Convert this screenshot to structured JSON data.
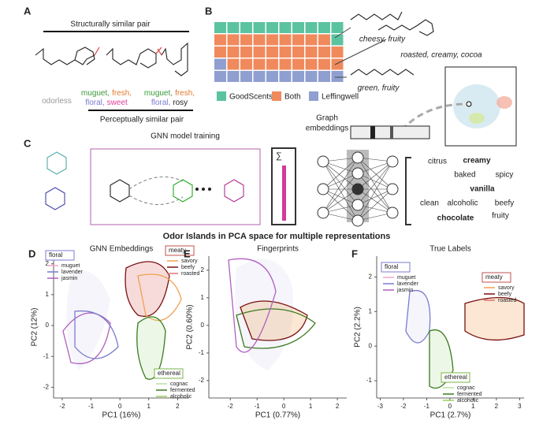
{
  "panel_a": {
    "label": "A",
    "top_caption": "Structurally similar pair",
    "bottom_caption": "Perceptually similar pair",
    "molecules": [
      {
        "lines": [
          [
            {
              "text": "odorless",
              "color": "#9a9a9a"
            }
          ]
        ]
      },
      {
        "lines": [
          [
            {
              "text": "muguet,",
              "color": "#3a9a3a"
            },
            {
              "text": "fresh,",
              "color": "#e07a30"
            }
          ],
          [
            {
              "text": "floral,",
              "color": "#7b7bd0"
            },
            {
              "text": "sweet",
              "color": "#e0409a"
            }
          ]
        ]
      },
      {
        "lines": [
          [
            {
              "text": "muguet,",
              "color": "#3a9a3a"
            },
            {
              "text": "fresh,",
              "color": "#e07a30"
            }
          ],
          [
            {
              "text": "floral,",
              "color": "#7b7bd0"
            },
            {
              "text": "rosy",
              "color": "#222222"
            }
          ]
        ]
      }
    ]
  },
  "panel_b": {
    "label": "B",
    "legend": [
      {
        "name": "GoodScents",
        "color": "#5cc3a0"
      },
      {
        "name": "Both",
        "color": "#f08a5d"
      },
      {
        "name": "Leffingwell",
        "color": "#8f9fd0"
      }
    ],
    "descriptors": [
      "cheesy, fruity",
      "roasted, creamy, cocoa",
      "green, fruity"
    ]
  },
  "panel_c": {
    "label": "C",
    "training_title": "GNN model training",
    "embedding_label": [
      "Graph",
      "embeddings"
    ],
    "sum_symbol": "∑",
    "words": [
      {
        "text": "citrus",
        "color": "#777777",
        "bold": false
      },
      {
        "text": "creamy",
        "color": "#f08a5d",
        "bold": true
      },
      {
        "text": "baked",
        "color": "#777777",
        "bold": false
      },
      {
        "text": "spicy",
        "color": "#777777",
        "bold": false
      },
      {
        "text": "vanilla",
        "color": "#9acd32",
        "bold": true
      },
      {
        "text": "clean",
        "color": "#777777",
        "bold": false
      },
      {
        "text": "alcoholic",
        "color": "#777777",
        "bold": false
      },
      {
        "text": "beefy",
        "color": "#777777",
        "bold": false
      },
      {
        "text": "chocolate",
        "color": "#6cb4e0",
        "bold": true
      },
      {
        "text": "fruity",
        "color": "#777777",
        "bold": false
      }
    ]
  },
  "figure_title": "Odor Islands in PCA space for multiple representations",
  "plots": [
    {
      "label": "D",
      "title": "GNN Embeddings",
      "xlabel": "PC1 (16%)",
      "ylabel": "PC2 (12%)",
      "xlim": [
        -2.3,
        2.4
      ],
      "ylim": [
        -2.35,
        2.25
      ],
      "xticks": [
        -2,
        -1,
        0,
        1,
        2
      ],
      "yticks": [
        -2,
        -1,
        0,
        1,
        2
      ],
      "legends": [
        {
          "title": "floral",
          "color": "#7b7bd0",
          "entries": [
            {
              "name": "muguet",
              "color": "#f4a6c8"
            },
            {
              "name": "lavender",
              "color": "#7b7bd0"
            },
            {
              "name": "jasmin",
              "color": "#b05fc0"
            }
          ]
        },
        {
          "title": "meaty",
          "color": "#c0504d",
          "entries": [
            {
              "name": "savory",
              "color": "#f0a050"
            },
            {
              "name": "beefy",
              "color": "#7a1010"
            },
            {
              "name": "roasted",
              "color": "#e07070"
            }
          ]
        },
        {
          "title": "ethereal",
          "color": "#7ab648",
          "entries": [
            {
              "name": "cognac",
              "color": "#b8e0a0"
            },
            {
              "name": "fermented",
              "color": "#3a7a20"
            },
            {
              "name": "alcoholic",
              "color": "#9acd60"
            }
          ]
        }
      ]
    },
    {
      "label": "E",
      "title": "Fingerprints",
      "xlabel": "PC1 (0.77%)",
      "ylabel": "PC2 (0.60%)",
      "xlim": [
        -2.8,
        2.35
      ],
      "ylim": [
        -2.63,
        2.51
      ],
      "xticks": [
        -2,
        -1,
        0,
        1,
        2
      ],
      "yticks": [
        -2,
        -1,
        0,
        1,
        2
      ],
      "legends": []
    },
    {
      "label": "F",
      "title": "True Labels",
      "xlabel": "PC1 (2.7%)",
      "ylabel": "PC2 (2.2%)",
      "xlim": [
        -3.15,
        3.19
      ],
      "ylim": [
        -1.5,
        2.6
      ],
      "xticks": [
        -3,
        -2,
        -1,
        0,
        1,
        2,
        3
      ],
      "yticks": [
        -1,
        0,
        1,
        2
      ],
      "legends": [
        {
          "title": "floral",
          "color": "#7b7bd0",
          "entries": [
            {
              "name": "muguet",
              "color": "#f4a6c8"
            },
            {
              "name": "lavender",
              "color": "#7b7bd0"
            },
            {
              "name": "jasmin",
              "color": "#b05fc0"
            }
          ]
        },
        {
          "title": "meaty",
          "color": "#c0504d",
          "entries": [
            {
              "name": "savory",
              "color": "#f0a050"
            },
            {
              "name": "beefy",
              "color": "#7a1010"
            },
            {
              "name": "roasted",
              "color": "#e07070"
            }
          ]
        },
        {
          "title": "ethereal",
          "color": "#7ab648",
          "entries": [
            {
              "name": "cognac",
              "color": "#b8e0a0"
            },
            {
              "name": "fermented",
              "color": "#3a7a20"
            },
            {
              "name": "alcoholic",
              "color": "#9acd60"
            }
          ]
        }
      ]
    }
  ]
}
